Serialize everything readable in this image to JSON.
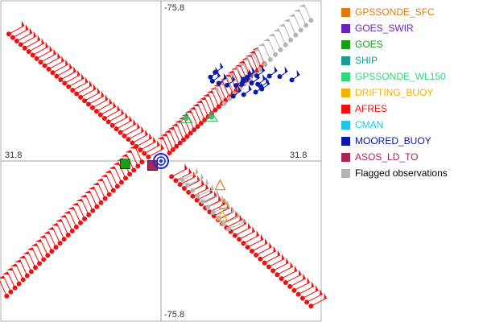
{
  "chart_data": {
    "type": "scatter",
    "title": "",
    "axis_labels": {
      "top": "-75.8",
      "bottom": "-75.8",
      "left": "31.8",
      "right": "31.8"
    },
    "xlim": [
      -75.8,
      75.8
    ],
    "ylim": [
      -31.8,
      31.8
    ],
    "grid": false,
    "legend_position": "right",
    "legend": [
      {
        "name": "GPSSONDE_SFC",
        "color": "#e07a10"
      },
      {
        "name": "GOES_SWIR",
        "color": "#6a22b8"
      },
      {
        "name": "GOES",
        "color": "#1a9e1a"
      },
      {
        "name": "SHIP",
        "color": "#1a9a94"
      },
      {
        "name": "GPSSONDE_WL150",
        "color": "#33d67a"
      },
      {
        "name": "DRIFTING_BUOY",
        "color": "#f0b400"
      },
      {
        "name": "AFRES",
        "color": "#ee1111"
      },
      {
        "name": "CMAN",
        "color": "#22c4e8"
      },
      {
        "name": "MOORED_BUOY",
        "color": "#0a1aa8"
      },
      {
        "name": "ASOS_LD_TO",
        "color": "#a8245a"
      },
      {
        "name": "Flagged observations",
        "color": "#b4b4b4"
      }
    ],
    "series": [
      {
        "name": "AFRES",
        "leg": "northwest",
        "start": [
          -72,
          25.2
        ],
        "end": [
          -6,
          0.8
        ],
        "count": 36
      },
      {
        "name": "AFRES",
        "leg": "northeast",
        "start": [
          4,
          1.6
        ],
        "end": [
          49,
          19.3
        ],
        "count": 28
      },
      {
        "name": "AFRES",
        "leg": "southwest",
        "start": [
          -73,
          -26.8
        ],
        "end": [
          -9,
          -0.2
        ],
        "count": 34
      },
      {
        "name": "AFRES",
        "leg": "southeast",
        "start": [
          5,
          -3.1
        ],
        "end": [
          71,
          -28.8
        ],
        "count": 34
      },
      {
        "name": "Flagged observations",
        "leg": "northeast",
        "start": [
          30,
          11.4
        ],
        "end": [
          71,
          27.9
        ],
        "count": 18
      },
      {
        "name": "Flagged observations",
        "leg": "southeast",
        "start": [
          10,
          -3.7
        ],
        "end": [
          32,
          -13.5
        ],
        "count": 10
      },
      {
        "name": "MOORED_BUOY",
        "leg": "cluster",
        "center": [
          40,
          15.5
        ],
        "count": 22
      },
      {
        "name": "GOES",
        "leg": "center",
        "points": [
          [
            -17,
            -0.6
          ],
          [
            -4,
            -0.9
          ]
        ]
      },
      {
        "name": "SHIP",
        "leg": "east",
        "points": [
          [
            12,
            8.4
          ],
          [
            24,
            8.7
          ]
        ]
      },
      {
        "name": "GPSSONDE_SFC",
        "leg": "southeast",
        "points": [
          [
            28,
            -4.9
          ],
          [
            30,
            -8.7
          ]
        ]
      },
      {
        "name": "DRIFTING_BUOY",
        "leg": "southeast",
        "points": [
          [
            29,
            -11.0
          ]
        ]
      },
      {
        "name": "ASOS_LD_TO",
        "leg": "center",
        "points": [
          [
            -4,
            -0.9
          ]
        ]
      },
      {
        "name": "CMAN",
        "leg": "center",
        "points": [
          [
            0,
            0.0
          ]
        ]
      }
    ]
  }
}
